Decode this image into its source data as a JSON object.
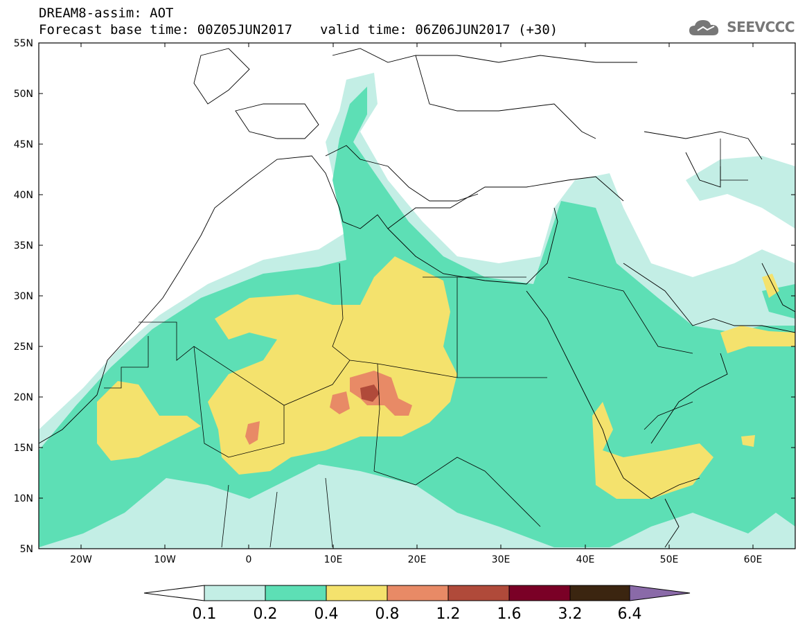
{
  "header": {
    "title": "DREAM8-assim: AOT",
    "base_time": "Forecast base time: 00Z05JUN2017",
    "valid_time": "valid time: 06Z06JUN2017 (+30)"
  },
  "logo": {
    "text": "SEEVCCC",
    "icon": "cloud-icon"
  },
  "map": {
    "variable": "AOT",
    "lon_range": [
      -25,
      65
    ],
    "lat_range": [
      5,
      55
    ],
    "lon_ticks": [
      "20W",
      "10W",
      "0",
      "10E",
      "20E",
      "30E",
      "40E",
      "50E",
      "60E"
    ],
    "lat_ticks": [
      "55N",
      "50N",
      "45N",
      "40N",
      "35N",
      "30N",
      "25N",
      "20N",
      "15N",
      "10N",
      "5N"
    ]
  },
  "colorbar": {
    "levels": [
      "0.1",
      "0.2",
      "0.4",
      "0.8",
      "1.2",
      "1.6",
      "3.2",
      "6.4"
    ],
    "colors": {
      "below": "#ffffff",
      "c1": "#c3eee5",
      "c2": "#5ddfb5",
      "c3": "#f4e26d",
      "c4": "#e88a66",
      "c5": "#b04a3a",
      "c6": "#7a0026",
      "c7": "#3b2510",
      "above": "#8a6aa8"
    }
  }
}
